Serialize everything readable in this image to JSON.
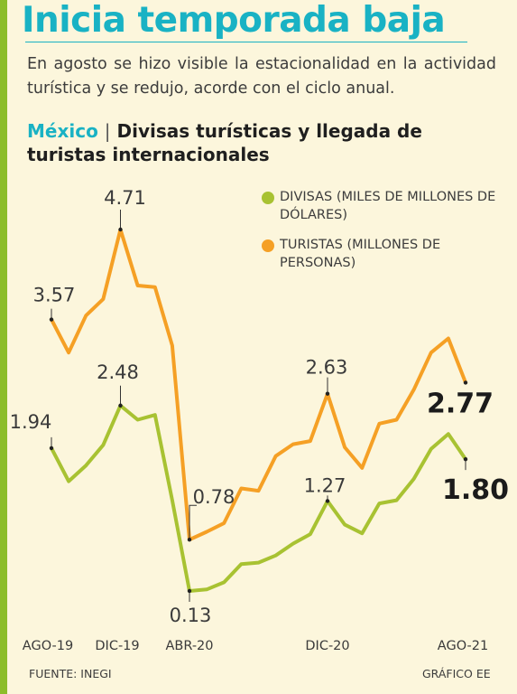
{
  "title": "Inicia temporada baja",
  "subtitle": "En agosto se hizo visible la estacionalidad en la actividad turística y se redujo, acorde con el ciclo anual.",
  "chart_heading": {
    "country": "México",
    "separator": "|",
    "text": "Divisas turísticas y llegada de turistas internacionales"
  },
  "footer": {
    "source": "FUENTE: INEGI",
    "credit": "GRÁFICO EE"
  },
  "colors": {
    "background": "#fcf6dc",
    "accent": "#8cbd2a",
    "title": "#19b2c4",
    "divisas": "#a8c232",
    "turistas": "#f5a025"
  },
  "chart_data": {
    "type": "line",
    "x_tick_labels": [
      "AGO-19",
      "DIC-19",
      "ABR-20",
      "DIC-20",
      "AGO-21"
    ],
    "x_tick_index": [
      0,
      4,
      8,
      16,
      24
    ],
    "series": [
      {
        "name": "DIVISAS (MILES DE MILLONES DE DÓLARES)",
        "color": "#a8c232",
        "values": [
          1.94,
          1.52,
          1.72,
          1.98,
          2.48,
          2.3,
          2.36,
          1.28,
          0.13,
          0.15,
          0.24,
          0.47,
          0.49,
          0.58,
          0.73,
          0.85,
          1.27,
          0.97,
          0.86,
          1.24,
          1.28,
          1.55,
          1.93,
          2.12,
          1.8
        ]
      },
      {
        "name": "TURISTAS (MILLONES DE PERSONAS)",
        "color": "#f5a025",
        "values": [
          3.57,
          3.15,
          3.62,
          3.83,
          4.71,
          4.0,
          3.98,
          3.24,
          0.78,
          0.88,
          0.99,
          1.43,
          1.4,
          1.84,
          1.99,
          2.03,
          2.63,
          1.95,
          1.69,
          2.25,
          2.3,
          2.68,
          3.15,
          3.33,
          2.77
        ]
      }
    ],
    "annotations": [
      {
        "series": 0,
        "index": 0,
        "label": "1.94",
        "bold": false
      },
      {
        "series": 0,
        "index": 4,
        "label": "2.48",
        "bold": false
      },
      {
        "series": 0,
        "index": 8,
        "label": "0.13",
        "bold": false
      },
      {
        "series": 0,
        "index": 16,
        "label": "1.27",
        "bold": false
      },
      {
        "series": 0,
        "index": 24,
        "label": "1.80",
        "bold": true
      },
      {
        "series": 1,
        "index": 0,
        "label": "3.57",
        "bold": false
      },
      {
        "series": 1,
        "index": 4,
        "label": "4.71",
        "bold": false
      },
      {
        "series": 1,
        "index": 8,
        "label": "0.78",
        "bold": false
      },
      {
        "series": 1,
        "index": 16,
        "label": "2.63",
        "bold": false
      },
      {
        "series": 1,
        "index": 24,
        "label": "2.77",
        "bold": true
      }
    ],
    "xlabel": "",
    "ylabel": "",
    "grid": false,
    "legend_position": "top-right"
  }
}
